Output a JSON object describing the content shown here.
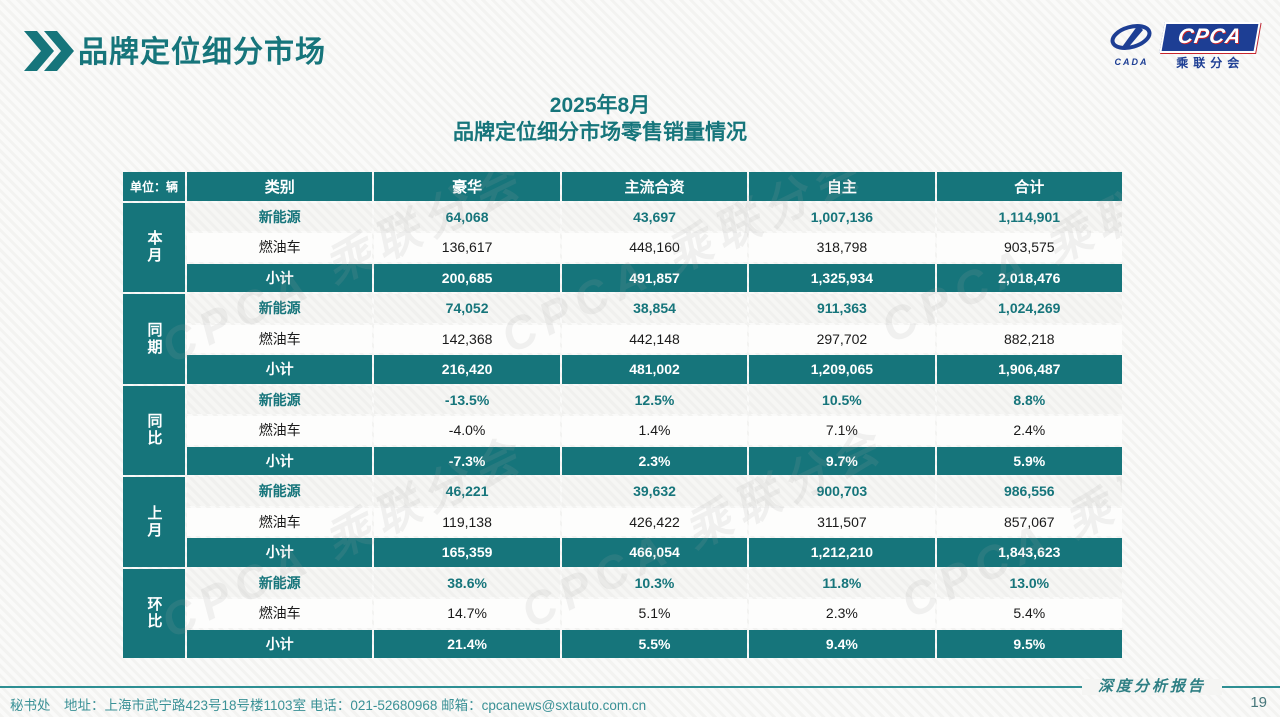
{
  "colors": {
    "teal": "#16757B",
    "logo_blue": "#1D3E94",
    "logo_red": "#C8242C"
  },
  "header": {
    "title": "品牌定位细分市场"
  },
  "logo": {
    "cada_label": "CADA",
    "cpca_label": "CPCA",
    "sub_label": "乘联分会"
  },
  "table_title": {
    "line1": "2025年8月",
    "line2": "品牌定位细分市场零售销量情况"
  },
  "watermark_text": "CPCA 乘联分会",
  "table": {
    "unit_label": "单位：辆",
    "columns": [
      "类别",
      "豪华",
      "主流合资",
      "自主",
      "合计"
    ],
    "sections": [
      {
        "group": "本月",
        "rows": [
          {
            "label": "新能源",
            "style": "nev",
            "values": [
              "64,068",
              "43,697",
              "1,007,136",
              "1,114,901"
            ]
          },
          {
            "label": "燃油车",
            "style": "ice",
            "values": [
              "136,617",
              "448,160",
              "318,798",
              "903,575"
            ]
          },
          {
            "label": "小计",
            "style": "sub",
            "values": [
              "200,685",
              "491,857",
              "1,325,934",
              "2,018,476"
            ]
          }
        ]
      },
      {
        "group": "同期",
        "rows": [
          {
            "label": "新能源",
            "style": "nev",
            "values": [
              "74,052",
              "38,854",
              "911,363",
              "1,024,269"
            ]
          },
          {
            "label": "燃油车",
            "style": "ice",
            "values": [
              "142,368",
              "442,148",
              "297,702",
              "882,218"
            ]
          },
          {
            "label": "小计",
            "style": "sub",
            "values": [
              "216,420",
              "481,002",
              "1,209,065",
              "1,906,487"
            ]
          }
        ]
      },
      {
        "group": "同比",
        "rows": [
          {
            "label": "新能源",
            "style": "nev",
            "values": [
              "-13.5%",
              "12.5%",
              "10.5%",
              "8.8%"
            ]
          },
          {
            "label": "燃油车",
            "style": "ice",
            "values": [
              "-4.0%",
              "1.4%",
              "7.1%",
              "2.4%"
            ]
          },
          {
            "label": "小计",
            "style": "sub",
            "values": [
              "-7.3%",
              "2.3%",
              "9.7%",
              "5.9%"
            ]
          }
        ]
      },
      {
        "group": "上月",
        "rows": [
          {
            "label": "新能源",
            "style": "nev",
            "values": [
              "46,221",
              "39,632",
              "900,703",
              "986,556"
            ]
          },
          {
            "label": "燃油车",
            "style": "ice",
            "values": [
              "119,138",
              "426,422",
              "311,507",
              "857,067"
            ]
          },
          {
            "label": "小计",
            "style": "sub",
            "values": [
              "165,359",
              "466,054",
              "1,212,210",
              "1,843,623"
            ]
          }
        ]
      },
      {
        "group": "环比",
        "rows": [
          {
            "label": "新能源",
            "style": "nev",
            "values": [
              "38.6%",
              "10.3%",
              "11.8%",
              "13.0%"
            ]
          },
          {
            "label": "燃油车",
            "style": "ice",
            "values": [
              "14.7%",
              "5.1%",
              "2.3%",
              "5.4%"
            ]
          },
          {
            "label": "小计",
            "style": "sub",
            "values": [
              "21.4%",
              "5.5%",
              "9.4%",
              "9.5%"
            ]
          }
        ]
      }
    ]
  },
  "footer": {
    "contact": "秘书处　地址：上海市武宁路423号18号楼1103室  电话：021-52680968   邮箱：cpcanews@sxtauto.com.cn",
    "report_label": "深度分析报告",
    "page_number": "19"
  }
}
